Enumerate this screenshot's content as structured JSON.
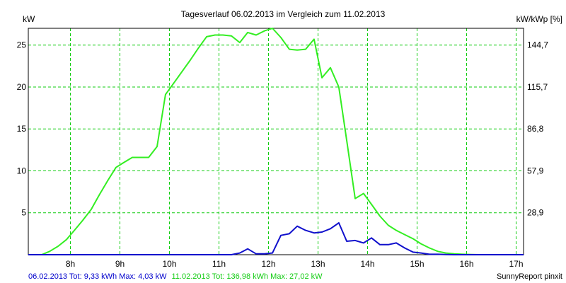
{
  "chart_data": {
    "type": "line",
    "title": "Tagesverlauf 06.02.2013 im Vergleich zum 11.02.2013",
    "ylabel_left": "kW",
    "ylabel_right": "kW/kWp [%]",
    "xlim": [
      7.15,
      17.15
    ],
    "ylim": [
      0,
      27
    ],
    "grid": true,
    "x_ticks": [
      {
        "value": 8,
        "label": "8h"
      },
      {
        "value": 9,
        "label": "9h"
      },
      {
        "value": 10,
        "label": "10h"
      },
      {
        "value": 11,
        "label": "11h"
      },
      {
        "value": 12,
        "label": "12h"
      },
      {
        "value": 13,
        "label": "13h"
      },
      {
        "value": 14,
        "label": "14h"
      },
      {
        "value": 15,
        "label": "15h"
      },
      {
        "value": 16,
        "label": "16h"
      },
      {
        "value": 17,
        "label": "17h"
      }
    ],
    "y_ticks_left": [
      {
        "value": 5,
        "label": "5"
      },
      {
        "value": 10,
        "label": "10"
      },
      {
        "value": 15,
        "label": "15"
      },
      {
        "value": 20,
        "label": "20"
      },
      {
        "value": 25,
        "label": "25"
      }
    ],
    "y_ticks_right": [
      {
        "value": 5,
        "label": "28,9"
      },
      {
        "value": 10,
        "label": "57,9"
      },
      {
        "value": 15,
        "label": "86,8"
      },
      {
        "value": 20,
        "label": "115,7"
      },
      {
        "value": 25,
        "label": "144,7"
      }
    ],
    "series": [
      {
        "name": "11.02.2013",
        "color": "#33ee22",
        "x": [
          7.15,
          7.42,
          7.58,
          7.75,
          7.92,
          8.08,
          8.25,
          8.42,
          8.58,
          8.75,
          8.92,
          9.08,
          9.25,
          9.42,
          9.58,
          9.75,
          9.92,
          10.08,
          10.25,
          10.42,
          10.58,
          10.75,
          10.92,
          11.08,
          11.25,
          11.42,
          11.58,
          11.75,
          11.92,
          12.08,
          12.25,
          12.42,
          12.58,
          12.75,
          12.92,
          13.08,
          13.25,
          13.42,
          13.58,
          13.75,
          13.92,
          14.08,
          14.25,
          14.42,
          14.58,
          14.75,
          14.92,
          15.08,
          15.25,
          15.42,
          15.58,
          15.75,
          15.92,
          16.08,
          16.25,
          16.42,
          16.58,
          16.75,
          16.92,
          17.15
        ],
        "values": [
          0,
          0,
          0.4,
          1.0,
          1.8,
          2.9,
          4.1,
          5.4,
          7.1,
          8.8,
          10.4,
          11.0,
          11.6,
          11.6,
          11.6,
          12.9,
          19.1,
          20.4,
          21.8,
          23.2,
          24.6,
          26.0,
          26.2,
          26.2,
          26.1,
          25.3,
          26.5,
          26.2,
          26.7,
          27.0,
          25.9,
          24.5,
          24.4,
          24.5,
          25.7,
          21.1,
          22.3,
          20.0,
          13.6,
          6.7,
          7.3,
          6.0,
          4.6,
          3.5,
          2.9,
          2.4,
          1.9,
          1.3,
          0.8,
          0.4,
          0.2,
          0.1,
          0.05,
          0.02,
          0,
          0,
          0,
          0,
          0,
          0
        ]
      },
      {
        "name": "06.02.2013",
        "color": "#1010cc",
        "x": [
          7.15,
          8.0,
          9.0,
          10.0,
          11.0,
          11.25,
          11.42,
          11.58,
          11.75,
          11.92,
          12.08,
          12.25,
          12.42,
          12.58,
          12.75,
          12.92,
          13.08,
          13.25,
          13.42,
          13.58,
          13.75,
          13.92,
          14.08,
          14.25,
          14.42,
          14.58,
          14.75,
          14.92,
          15.08,
          15.25,
          15.42,
          15.58,
          15.75,
          15.92,
          16.08,
          16.25,
          16.42,
          16.58,
          16.75,
          16.92,
          17.15
        ],
        "values": [
          0,
          0,
          0,
          0,
          0,
          0,
          0.2,
          0.7,
          0.1,
          0.1,
          0.2,
          2.3,
          2.5,
          3.4,
          2.9,
          2.6,
          2.7,
          3.1,
          3.8,
          1.6,
          1.7,
          1.4,
          2.0,
          1.2,
          1.2,
          1.4,
          0.8,
          0.3,
          0.2,
          0.05,
          0.05,
          0.02,
          0,
          0,
          0,
          0,
          0,
          0,
          0,
          0,
          0
        ]
      }
    ]
  },
  "footer": {
    "series1_summary": "06.02.2013 Tot: 9,33 kWh Max: 4,03 kW",
    "series2_summary": "11.02.2013 Tot: 136,98 kWh Max: 27,02 kW",
    "brand": "SunnyReport pinxit"
  },
  "colors": {
    "grid": "#11cc11",
    "blue_text": "#0000cc",
    "green_text": "#11cc11"
  }
}
